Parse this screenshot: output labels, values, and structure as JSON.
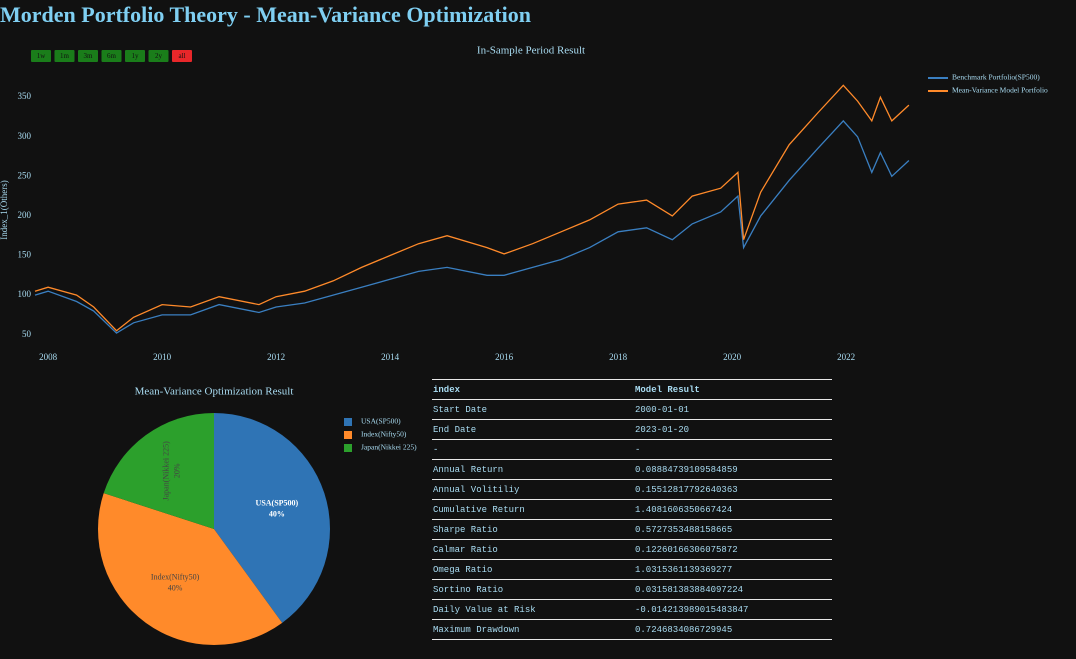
{
  "title": "Morden Portfolio Theory - Mean-Variance Optimization",
  "range_selector": {
    "buttons": [
      "1w",
      "1m",
      "3m",
      "6m",
      "1y",
      "2y",
      "all"
    ],
    "color": "#1a7d1a",
    "active_color": "#e8272a",
    "active": 6
  },
  "chart_data": [
    {
      "type": "line",
      "title": "In-Sample Period Result",
      "y_label": "Index_1(Others)",
      "x": [
        2007.77,
        2008.0,
        2008.5,
        2008.8,
        2009.2,
        2009.5,
        2010.0,
        2010.5,
        2011.0,
        2011.7,
        2012.0,
        2012.5,
        2013.0,
        2013.5,
        2014.0,
        2014.5,
        2015.0,
        2015.7,
        2016.0,
        2016.5,
        2017.0,
        2017.5,
        2018.0,
        2018.5,
        2018.95,
        2019.3,
        2019.8,
        2020.1,
        2020.2,
        2020.5,
        2021.0,
        2021.5,
        2021.95,
        2022.2,
        2022.45,
        2022.6,
        2022.8,
        2023.1
      ],
      "series": [
        {
          "name": "Benchmark Portfolio(SP500)",
          "color": "#3a7fc1",
          "values": [
            100,
            105,
            92,
            80,
            52,
            65,
            75,
            75,
            88,
            78,
            85,
            90,
            100,
            110,
            120,
            130,
            135,
            125,
            125,
            135,
            145,
            160,
            180,
            185,
            170,
            190,
            205,
            225,
            160,
            200,
            245,
            285,
            320,
            300,
            255,
            280,
            250,
            270
          ]
        },
        {
          "name": "Mean-Variance Model Portfolio",
          "color": "#ff8a2a",
          "values": [
            105,
            110,
            100,
            85,
            55,
            72,
            88,
            85,
            98,
            88,
            98,
            105,
            118,
            135,
            150,
            165,
            175,
            160,
            152,
            165,
            180,
            195,
            215,
            220,
            200,
            225,
            235,
            255,
            170,
            230,
            290,
            330,
            365,
            345,
            320,
            350,
            320,
            340
          ]
        }
      ],
      "xlim": [
        2007.77,
        2023.12
      ],
      "xticks": [
        2008,
        2010,
        2012,
        2014,
        2016,
        2018,
        2020,
        2022
      ],
      "ylim": [
        37,
        378
      ],
      "yticks": [
        50,
        100,
        150,
        200,
        250,
        300,
        350
      ],
      "grid": false
    },
    {
      "type": "pie",
      "title": "Mean-Variance Optimization Result",
      "categories": [
        "USA(SP500)",
        "Index(Nifty50)",
        "Japan(Nikkei 225)"
      ],
      "values": [
        40,
        40,
        20
      ],
      "value_labels": [
        "40%",
        "40%",
        "20%"
      ],
      "colors": [
        "#2f74b5",
        "#ff8a2a",
        "#2ca02c"
      ]
    }
  ],
  "table": {
    "columns": [
      "index",
      "Model Result"
    ],
    "rows": [
      [
        "Start Date",
        "2000-01-01"
      ],
      [
        "End Date",
        "2023-01-20"
      ],
      [
        "-",
        "-"
      ],
      [
        "Annual Return",
        "0.08884739109584859"
      ],
      [
        "Annual Volitiliy",
        "0.15512817792640363"
      ],
      [
        "Cumulative Return",
        "1.4081606350667424"
      ],
      [
        "Sharpe Ratio",
        "0.5727353488158665"
      ],
      [
        "Calmar Ratio",
        "0.12260166306075872"
      ],
      [
        "Omega Ratio",
        "1.0315361139369277"
      ],
      [
        "Sortino Ratio",
        "0.031581383884097224"
      ],
      [
        "Daily Value at Risk",
        "-0.014213989015483847"
      ],
      [
        "Maximum Drawdown",
        "0.7246834086729945"
      ]
    ]
  }
}
